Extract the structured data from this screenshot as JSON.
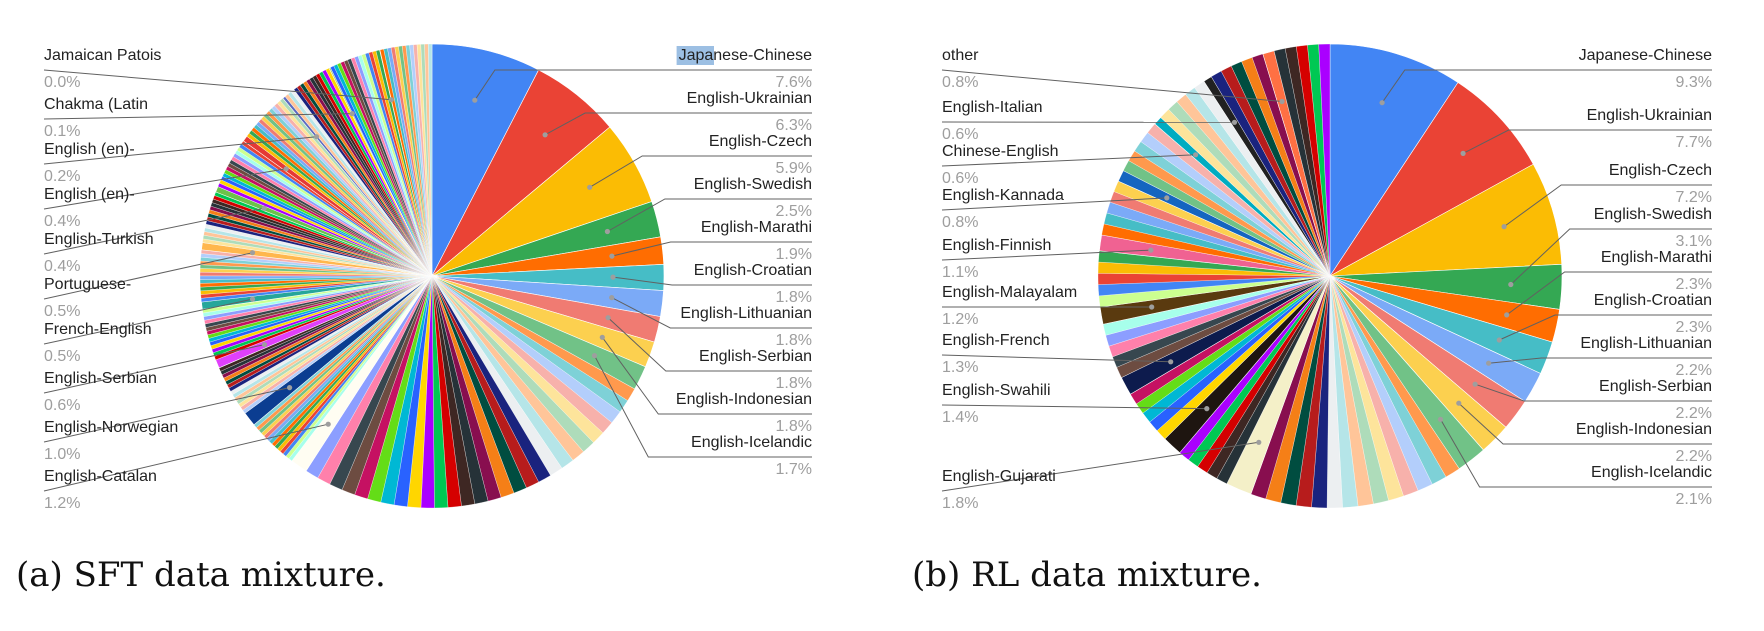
{
  "chart_data": [
    {
      "type": "pie",
      "title": "",
      "caption": "(a) SFT data mixture.",
      "highlight": "Japanese-Chinese",
      "labeled": [
        {
          "label": "Japanese-Chinese",
          "pct": "7.6%",
          "value": 7.6,
          "color": "#4285F4"
        },
        {
          "label": "English-Ukrainian",
          "pct": "6.3%",
          "value": 6.3,
          "color": "#EA4335"
        },
        {
          "label": "English-Czech",
          "pct": "5.9%",
          "value": 5.9,
          "color": "#FBBC04"
        },
        {
          "label": "English-Swedish",
          "pct": "2.5%",
          "value": 2.5,
          "color": "#34A853"
        },
        {
          "label": "English-Marathi",
          "pct": "1.9%",
          "value": 1.9,
          "color": "#FF6D01"
        },
        {
          "label": "English-Croatian",
          "pct": "1.8%",
          "value": 1.8,
          "color": "#46BDC6"
        },
        {
          "label": "English-Lithuanian",
          "pct": "1.8%",
          "value": 1.8,
          "color": "#7BAAF7"
        },
        {
          "label": "English-Serbian",
          "pct": "1.8%",
          "value": 1.8,
          "color": "#F07B72"
        },
        {
          "label": "English-Indonesian",
          "pct": "1.8%",
          "value": 1.8,
          "color": "#FCD04F"
        },
        {
          "label": "English-Icelandic",
          "pct": "1.7%",
          "value": 1.7,
          "color": "#71C287"
        },
        {
          "label": "English-Catalan",
          "pct": "1.2%",
          "value": 1.2,
          "color": "#FFFDF2"
        },
        {
          "label": "English-Norwegian",
          "pct": "1.0%",
          "value": 1.0,
          "color": "#0B3D91"
        },
        {
          "label": "English-Serbian",
          "pct": "0.6%",
          "value": 0.6,
          "color": "#E040FB"
        },
        {
          "label": "French-English",
          "pct": "0.5%",
          "value": 0.5,
          "color": "#26A69A"
        },
        {
          "label": "Portuguese-",
          "pct": "0.5%",
          "value": 0.5,
          "color": "#FFB74D"
        },
        {
          "label": "English-Turkish",
          "pct": "0.4%",
          "value": 0.4,
          "color": "#6CC24A"
        },
        {
          "label": "English (en)-",
          "pct": "0.4%",
          "value": 0.4,
          "color": "#E53935"
        },
        {
          "label": "English (en)-",
          "pct": "0.2%",
          "value": 0.2,
          "color": "#5C6BC0"
        },
        {
          "label": "Chakma (Latin",
          "pct": "0.1%",
          "value": 0.1,
          "color": "#9CCC65"
        },
        {
          "label": "Jamaican Patois",
          "pct": "0.0%",
          "value": 0.03,
          "color": "#BDBDBD"
        }
      ]
    },
    {
      "type": "pie",
      "title": "",
      "caption": "(b) RL data mixture.",
      "labeled": [
        {
          "label": "Japanese-Chinese",
          "pct": "9.3%",
          "value": 9.3,
          "color": "#4285F4"
        },
        {
          "label": "English-Ukrainian",
          "pct": "7.7%",
          "value": 7.7,
          "color": "#EA4335"
        },
        {
          "label": "English-Czech",
          "pct": "7.2%",
          "value": 7.2,
          "color": "#FBBC04"
        },
        {
          "label": "English-Swedish",
          "pct": "3.1%",
          "value": 3.1,
          "color": "#34A853"
        },
        {
          "label": "English-Marathi",
          "pct": "2.3%",
          "value": 2.3,
          "color": "#FF6D01"
        },
        {
          "label": "English-Croatian",
          "pct": "2.3%",
          "value": 2.3,
          "color": "#46BDC6"
        },
        {
          "label": "English-Lithuanian",
          "pct": "2.2%",
          "value": 2.2,
          "color": "#7BAAF7"
        },
        {
          "label": "English-Serbian",
          "pct": "2.2%",
          "value": 2.2,
          "color": "#F07B72"
        },
        {
          "label": "English-Indonesian",
          "pct": "2.2%",
          "value": 2.2,
          "color": "#FCD04F"
        },
        {
          "label": "English-Icelandic",
          "pct": "2.1%",
          "value": 2.1,
          "color": "#71C287"
        },
        {
          "label": "English-Gujarati",
          "pct": "1.8%",
          "value": 1.8,
          "color": "#F4F0C8"
        },
        {
          "label": "English-Swahili",
          "pct": "1.4%",
          "value": 1.4,
          "color": "#1E1510"
        },
        {
          "label": "English-French",
          "pct": "1.3%",
          "value": 1.3,
          "color": "#0D1B4D"
        },
        {
          "label": "English-Malayalam",
          "pct": "1.2%",
          "value": 1.2,
          "color": "#5A3A0F"
        },
        {
          "label": "English-Finnish",
          "pct": "1.1%",
          "value": 1.1,
          "color": "#F06292"
        },
        {
          "label": "English-Kannada",
          "pct": "0.8%",
          "value": 0.8,
          "color": "#1565C0"
        },
        {
          "label": "Chinese-English",
          "pct": "0.6%",
          "value": 0.6,
          "color": "#00ACC1"
        },
        {
          "label": "English-Italian",
          "pct": "0.6%",
          "value": 0.6,
          "color": "#212121"
        },
        {
          "label": "other",
          "pct": "0.8%",
          "value": 0.8,
          "color": "#FF7043"
        }
      ]
    }
  ],
  "palette": [
    "#4285F4",
    "#EA4335",
    "#FBBC04",
    "#34A853",
    "#FF6D01",
    "#46BDC6",
    "#7BAAF7",
    "#F07B72",
    "#FCD04F",
    "#71C287",
    "#FF994D",
    "#7ED1D7",
    "#B3CEFB",
    "#F7B1AB",
    "#FDE49B",
    "#AEDCBA",
    "#FFC599",
    "#B5E5E8",
    "#ECEFF1",
    "#1A237E",
    "#B71C1C",
    "#004D40",
    "#F57F17",
    "#880E4F",
    "#263238",
    "#3E2723",
    "#D50000",
    "#00C853",
    "#AA00FF",
    "#FFD600",
    "#2962FF",
    "#00B8D4",
    "#64DD17",
    "#C51162",
    "#6D4C41",
    "#37474F",
    "#FF80AB",
    "#8C9EFF",
    "#A7FFEB",
    "#CCFF90"
  ]
}
